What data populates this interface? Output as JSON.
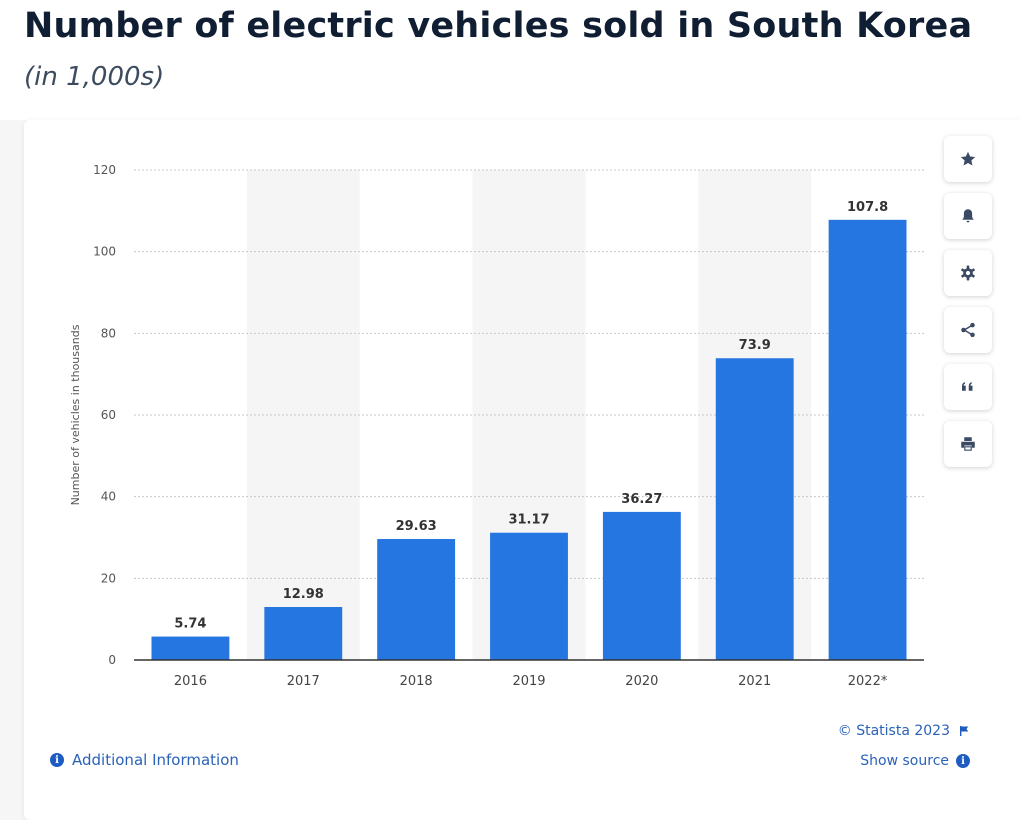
{
  "header": {
    "title": "Number of electric vehicles sold in South Korea",
    "subtitle": "(in 1,000s)"
  },
  "chart_data": {
    "type": "bar",
    "categories": [
      "2016",
      "2017",
      "2018",
      "2019",
      "2020",
      "2021",
      "2022*"
    ],
    "values": [
      5.74,
      12.98,
      29.63,
      31.17,
      36.27,
      73.9,
      107.8
    ],
    "value_labels": [
      "5.74",
      "12.98",
      "29.63",
      "31.17",
      "36.27",
      "73.9",
      "107.8"
    ],
    "ylabel": "Number of vehicles in thousands",
    "ylim": [
      0,
      120
    ],
    "yticks": [
      0,
      20,
      40,
      60,
      80,
      100,
      120
    ],
    "grid": true,
    "bar_color": "#2576e0"
  },
  "toolbar": {
    "buttons": [
      {
        "name": "favorite-button",
        "icon": "star-icon"
      },
      {
        "name": "notification-button",
        "icon": "bell-icon"
      },
      {
        "name": "settings-button",
        "icon": "gear-icon"
      },
      {
        "name": "share-button",
        "icon": "share-icon"
      },
      {
        "name": "cite-button",
        "icon": "quote-icon"
      },
      {
        "name": "print-button",
        "icon": "printer-icon"
      }
    ]
  },
  "footer": {
    "additional_info": "Additional Information",
    "credit": "© Statista 2023",
    "show_source": "Show source"
  }
}
